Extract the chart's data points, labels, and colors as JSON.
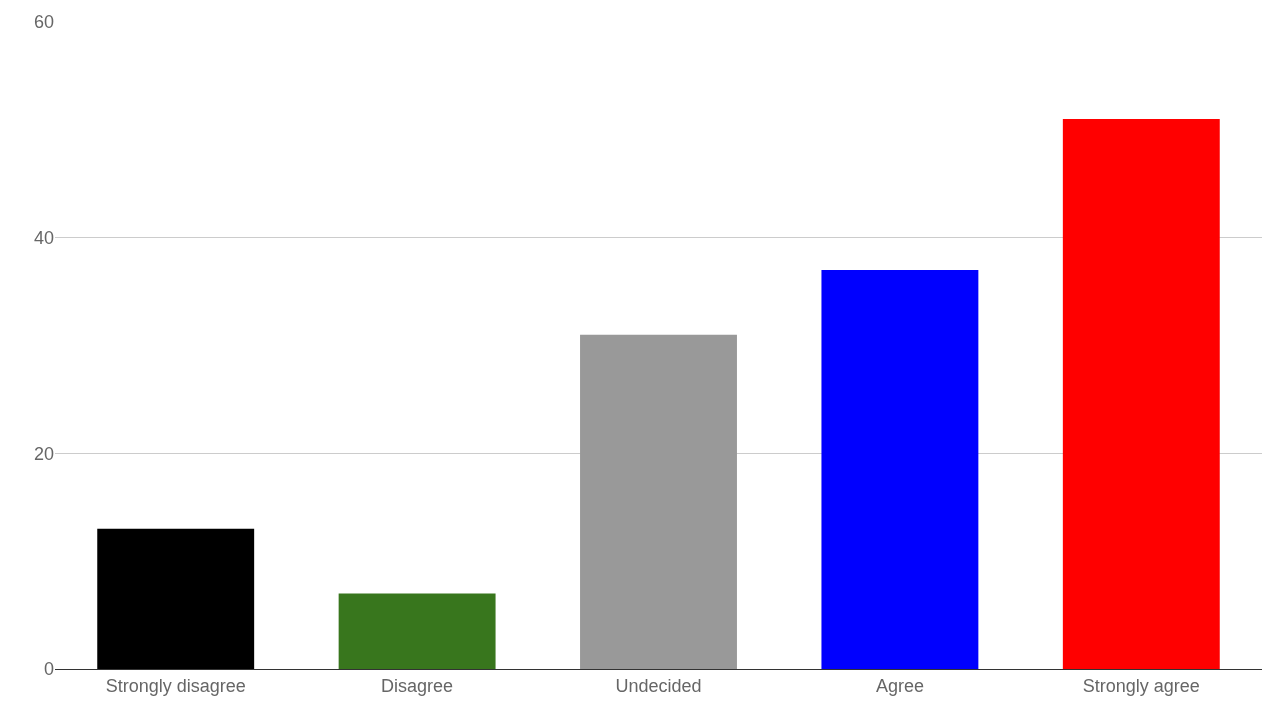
{
  "chart_data": {
    "type": "bar",
    "categories": [
      "Strongly disagree",
      "Disagree",
      "Undecided",
      "Agree",
      "Strongly agree"
    ],
    "values": [
      13,
      7,
      31,
      37,
      51
    ],
    "colors": [
      "#000000",
      "#38761d",
      "#999999",
      "#0000ff",
      "#ff0000"
    ],
    "ylim": [
      0,
      60
    ],
    "yticks": [
      0,
      20,
      40,
      60
    ],
    "grid": "y"
  }
}
